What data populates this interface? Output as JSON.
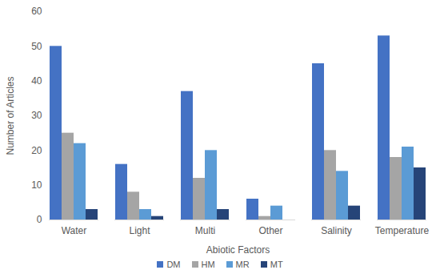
{
  "chart_data": {
    "type": "bar",
    "x_label": "Abiotic Factors",
    "y_label": "Number of Articles",
    "categories": [
      "Water",
      "Light",
      "Multi",
      "Other",
      "Salinity",
      "Temperature"
    ],
    "series": [
      {
        "name": "DM",
        "color": "#4472c4",
        "values": [
          50,
          16,
          37,
          6,
          45,
          53
        ]
      },
      {
        "name": "HM",
        "color": "#a5a5a5",
        "values": [
          25,
          8,
          12,
          1,
          20,
          18
        ]
      },
      {
        "name": "MR",
        "color": "#5b9bd5",
        "values": [
          22,
          3,
          20,
          4,
          14,
          21
        ]
      },
      {
        "name": "MT",
        "color": "#264478",
        "values": [
          3,
          1,
          3,
          0,
          4,
          15
        ]
      }
    ],
    "ylim": [
      0,
      60
    ],
    "yticks": [
      0,
      10,
      20,
      30,
      40,
      50,
      60
    ],
    "grid": false,
    "legend": "bottom"
  }
}
